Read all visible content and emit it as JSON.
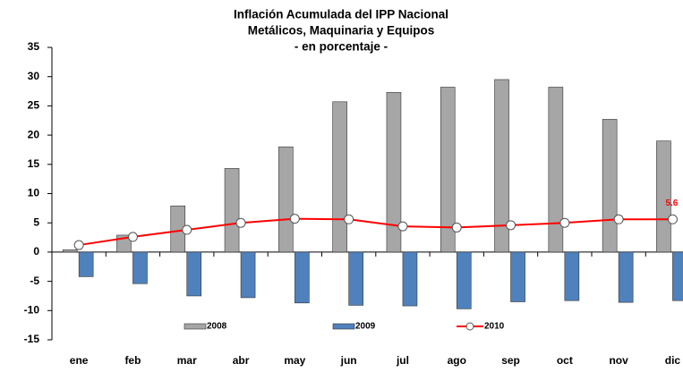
{
  "chart_data": {
    "type": "bar_line",
    "title": [
      "Inflación Acumulada del IPP Nacional",
      "Metálicos, Maquinaria y Equipos",
      "- en porcentaje -"
    ],
    "categories": [
      "ene",
      "feb",
      "mar",
      "abr",
      "may",
      "jun",
      "jul",
      "ago",
      "sep",
      "oct",
      "nov",
      "dic"
    ],
    "series": [
      {
        "name": "2008",
        "kind": "bar",
        "color": "#a6a6a6",
        "values": [
          0.4,
          2.9,
          7.9,
          14.3,
          18.0,
          25.7,
          27.3,
          28.2,
          29.5,
          28.2,
          22.7,
          19.0
        ]
      },
      {
        "name": "2009",
        "kind": "bar",
        "color": "#4f81bd",
        "values": [
          -4.2,
          -5.4,
          -7.5,
          -7.8,
          -8.7,
          -9.1,
          -9.2,
          -9.7,
          -8.5,
          -8.3,
          -8.6,
          -8.3
        ]
      },
      {
        "name": "2010",
        "kind": "line",
        "color": "#ff0000",
        "values": [
          1.2,
          2.6,
          3.8,
          5.0,
          5.7,
          5.6,
          4.4,
          4.2,
          4.6,
          5.0,
          5.6,
          5.6
        ],
        "value_labels": [
          null,
          null,
          null,
          null,
          null,
          null,
          null,
          null,
          null,
          null,
          null,
          "5.6"
        ]
      }
    ],
    "ylim": [
      -15,
      35
    ],
    "yticks": [
      -15,
      -10,
      -5,
      0,
      5,
      10,
      15,
      20,
      25,
      30,
      35
    ],
    "grid": false,
    "legend": "bottom"
  }
}
